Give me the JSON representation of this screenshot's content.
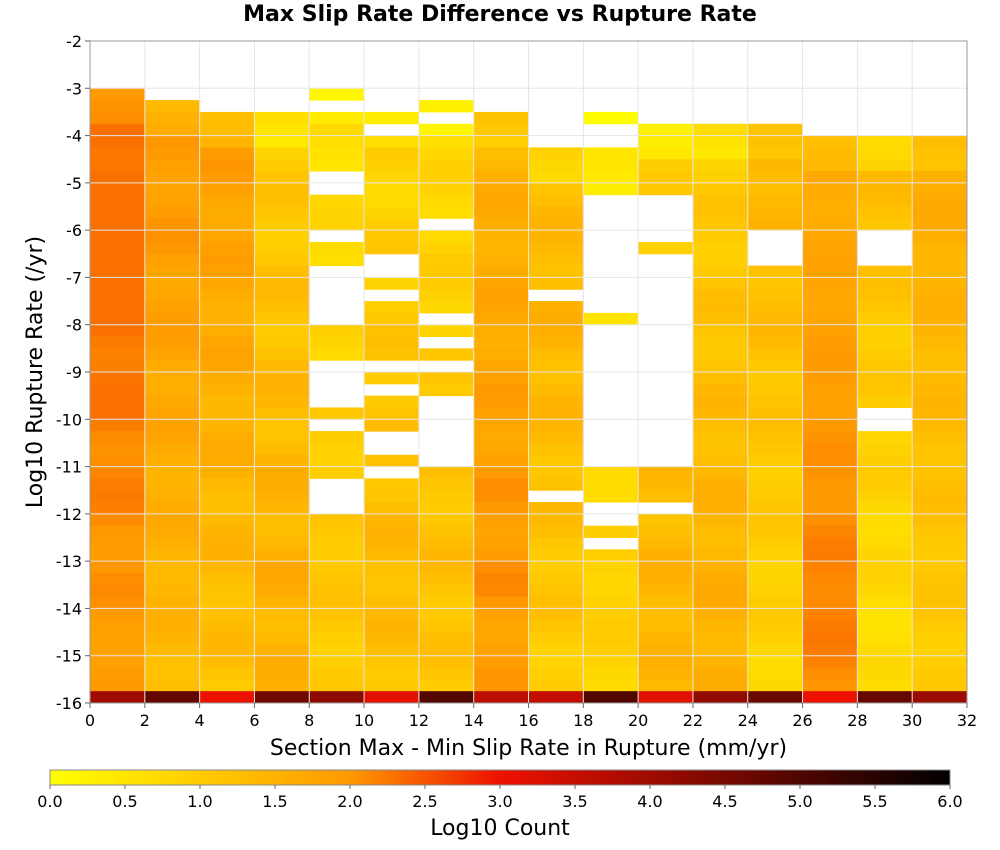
{
  "chart_data": {
    "type": "heatmap",
    "title": "Max Slip Rate Difference vs Rupture Rate",
    "xlabel": "Section Max - Min Slip Rate in Rupture (mm/yr)",
    "ylabel": "Log10 Rupture Rate (/yr)",
    "xlim": [
      0,
      32
    ],
    "ylim": [
      -16,
      -2
    ],
    "x_bin_width": 2,
    "y_bin_height": 0.25,
    "x_ticks": [
      "0",
      "2",
      "4",
      "6",
      "8",
      "10",
      "12",
      "14",
      "16",
      "18",
      "20",
      "22",
      "24",
      "26",
      "28",
      "30",
      "32"
    ],
    "y_ticks": [
      "-2",
      "-3",
      "-4",
      "-5",
      "-6",
      "-7",
      "-8",
      "-9",
      "-10",
      "-11",
      "-12",
      "-13",
      "-14",
      "-15",
      "-16"
    ],
    "grid": true,
    "colorbar": {
      "label": "Log10 Count",
      "range": [
        0.0,
        6.0
      ],
      "ticks": [
        "0.0",
        "0.5",
        "1.0",
        "1.5",
        "2.0",
        "2.5",
        "3.0",
        "3.5",
        "4.0",
        "4.5",
        "5.0",
        "5.5",
        "6.0"
      ],
      "colors": [
        "#ffff00",
        "#ff9900",
        "#ee1100",
        "#000000"
      ]
    },
    "columns": [
      {
        "x": 1,
        "top": -3.0,
        "base": 1.9,
        "peak": -6.0,
        "amp": 0.2,
        "holes": []
      },
      {
        "x": 3,
        "top": -3.25,
        "base": 1.4,
        "peak": -5.5,
        "amp": 0.25,
        "holes": []
      },
      {
        "x": 5,
        "top": -3.5,
        "base": 1.3,
        "peak": -4.8,
        "amp": 0.3,
        "holes": []
      },
      {
        "x": 7,
        "top": -3.5,
        "base": 1.0,
        "peak": -13.3,
        "amp": 0.35,
        "holes": []
      },
      {
        "x": 9,
        "top": -3.0,
        "base": 0.6,
        "peak": -13.0,
        "amp": 0.25,
        "holes": [
          [
            -3.25,
            -3.5
          ],
          [
            -4.75,
            -5.25
          ],
          [
            -6.0,
            -6.25
          ],
          [
            -6.75,
            -8.0
          ],
          [
            -8.75,
            -9.75
          ],
          [
            -10.0,
            -10.25
          ],
          [
            -11.25,
            -12.0
          ]
        ]
      },
      {
        "x": 11,
        "top": -3.5,
        "base": 0.8,
        "peak": -13.0,
        "amp": 0.3,
        "holes": [
          [
            -3.75,
            -4.0
          ],
          [
            -6.5,
            -7.0
          ],
          [
            -7.25,
            -7.5
          ],
          [
            -8.75,
            -9.0
          ],
          [
            -9.25,
            -9.5
          ],
          [
            -10.25,
            -10.75
          ],
          [
            -11.0,
            -11.25
          ]
        ]
      },
      {
        "x": 13,
        "top": -3.25,
        "base": 0.7,
        "peak": -13.0,
        "amp": 0.3,
        "holes": [
          [
            -3.5,
            -3.75
          ],
          [
            -5.75,
            -6.0
          ],
          [
            -7.75,
            -8.0
          ],
          [
            -8.25,
            -8.5
          ],
          [
            -8.75,
            -9.0
          ],
          [
            -9.5,
            -11.0
          ]
        ]
      },
      {
        "x": 15,
        "top": -3.5,
        "base": 1.45,
        "peak": -13.0,
        "amp": 0.3,
        "holes": []
      },
      {
        "x": 17,
        "top": -4.25,
        "base": 0.9,
        "peak": -8.0,
        "amp": 0.3,
        "holes": [
          [
            -7.25,
            -7.5
          ],
          [
            -11.5,
            -11.75
          ]
        ]
      },
      {
        "x": 19,
        "top": -3.5,
        "base": 0.4,
        "peak": -14.0,
        "amp": 0.2,
        "holes": [
          [
            -3.75,
            -4.25
          ],
          [
            -5.25,
            -7.75
          ],
          [
            -8.0,
            -11.0
          ],
          [
            -11.75,
            -12.25
          ],
          [
            -12.5,
            -12.75
          ]
        ]
      },
      {
        "x": 21,
        "top": -3.75,
        "base": 0.9,
        "peak": -14.0,
        "amp": 0.3,
        "holes": [
          [
            -5.25,
            -6.25
          ],
          [
            -6.5,
            -11.0
          ],
          [
            -11.75,
            -12.0
          ]
        ]
      },
      {
        "x": 23,
        "top": -3.75,
        "base": 1.0,
        "peak": -14.0,
        "amp": 0.3,
        "holes": []
      },
      {
        "x": 25,
        "top": -3.75,
        "base": 0.9,
        "peak": -5.0,
        "amp": 0.25,
        "holes": [
          [
            -6.0,
            -6.75
          ]
        ]
      },
      {
        "x": 27,
        "top": -4.0,
        "base": 1.65,
        "peak": -14.0,
        "amp": 0.15,
        "holes": []
      },
      {
        "x": 29,
        "top": -4.0,
        "base": 0.7,
        "peak": -5.0,
        "amp": 0.25,
        "holes": [
          [
            -6.0,
            -6.75
          ],
          [
            -9.75,
            -10.25
          ]
        ]
      },
      {
        "x": 31,
        "top": -4.0,
        "base": 1.1,
        "peak": -4.5,
        "amp": 0.2,
        "holes": []
      }
    ],
    "bottom_row": {
      "y": -15.875,
      "min_value": 3.0,
      "max_value": 5.0
    }
  }
}
